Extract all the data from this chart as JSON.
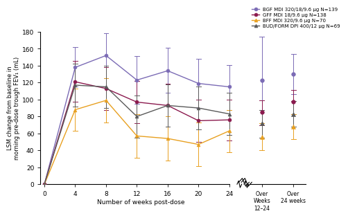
{
  "series": [
    {
      "label": "BGF MDI 320/18/9.6 μg N=139",
      "color": "#7b6bb5",
      "marker": "o",
      "weeks": [
        0,
        4,
        8,
        12,
        16,
        20,
        24
      ],
      "values": [
        0,
        138,
        152,
        123,
        134,
        119,
        115
      ],
      "ci_low": [
        0,
        115,
        125,
        95,
        108,
        90,
        88
      ],
      "ci_high": [
        0,
        162,
        178,
        151,
        161,
        148,
        141
      ],
      "over_12_24_val": 123,
      "over_12_24_low": 72,
      "over_12_24_high": 174,
      "over_24_val": 130,
      "over_24_low": 106,
      "over_24_high": 154
    },
    {
      "label": "GFF MDI 18/9.6 μg N=138",
      "color": "#8b1a4e",
      "marker": "o",
      "weeks": [
        0,
        4,
        8,
        12,
        16,
        20,
        24
      ],
      "values": [
        0,
        121,
        113,
        97,
        93,
        75,
        76
      ],
      "ci_low": [
        0,
        97,
        88,
        72,
        68,
        50,
        52
      ],
      "ci_high": [
        0,
        146,
        138,
        122,
        119,
        100,
        100
      ],
      "over_12_24_val": 85,
      "over_12_24_low": 70,
      "over_12_24_high": 99,
      "over_24_val": 97,
      "over_24_low": 83,
      "over_24_high": 111
    },
    {
      "label": "BFF MDI 320/9.6 μg N=70",
      "color": "#e8a020",
      "marker": "^",
      "weeks": [
        0,
        4,
        8,
        12,
        16,
        20,
        24
      ],
      "values": [
        0,
        88,
        99,
        57,
        54,
        47,
        63
      ],
      "ci_low": [
        0,
        63,
        73,
        31,
        28,
        21,
        38
      ],
      "ci_high": [
        0,
        113,
        125,
        83,
        80,
        73,
        88
      ],
      "over_12_24_val": 56,
      "over_12_24_low": 40,
      "over_12_24_high": 72,
      "over_24_val": 68,
      "over_24_low": 53,
      "over_24_high": 83
    },
    {
      "label": "BUD/FORM DPI 400/12 μg N=69",
      "color": "#5a5a5a",
      "marker": "^",
      "weeks": [
        0,
        4,
        8,
        12,
        16,
        20,
        24
      ],
      "values": [
        0,
        117,
        115,
        80,
        93,
        90,
        83
      ],
      "ci_low": [
        0,
        92,
        90,
        55,
        68,
        65,
        58
      ],
      "ci_high": [
        0,
        142,
        140,
        105,
        118,
        115,
        108
      ],
      "over_12_24_val": 72,
      "over_12_24_low": 55,
      "over_12_24_high": 88,
      "over_24_val": 83,
      "over_24_low": 68,
      "over_24_high": 98
    }
  ],
  "ylabel": "LSM change from baseline in\nmorning pre-dose trough FEV₁ (mL)",
  "xlabel": "Number of weeks post-dose",
  "ylim": [
    0,
    180
  ],
  "yticks": [
    0,
    20,
    40,
    60,
    80,
    100,
    120,
    140,
    160,
    180
  ],
  "main_xticks": [
    0,
    4,
    8,
    12,
    16,
    20,
    24
  ],
  "background_color": "#ffffff",
  "x_over1_label": "Over\nWeeks\n12–24",
  "x_over2_label": "Over\n24 weeks"
}
